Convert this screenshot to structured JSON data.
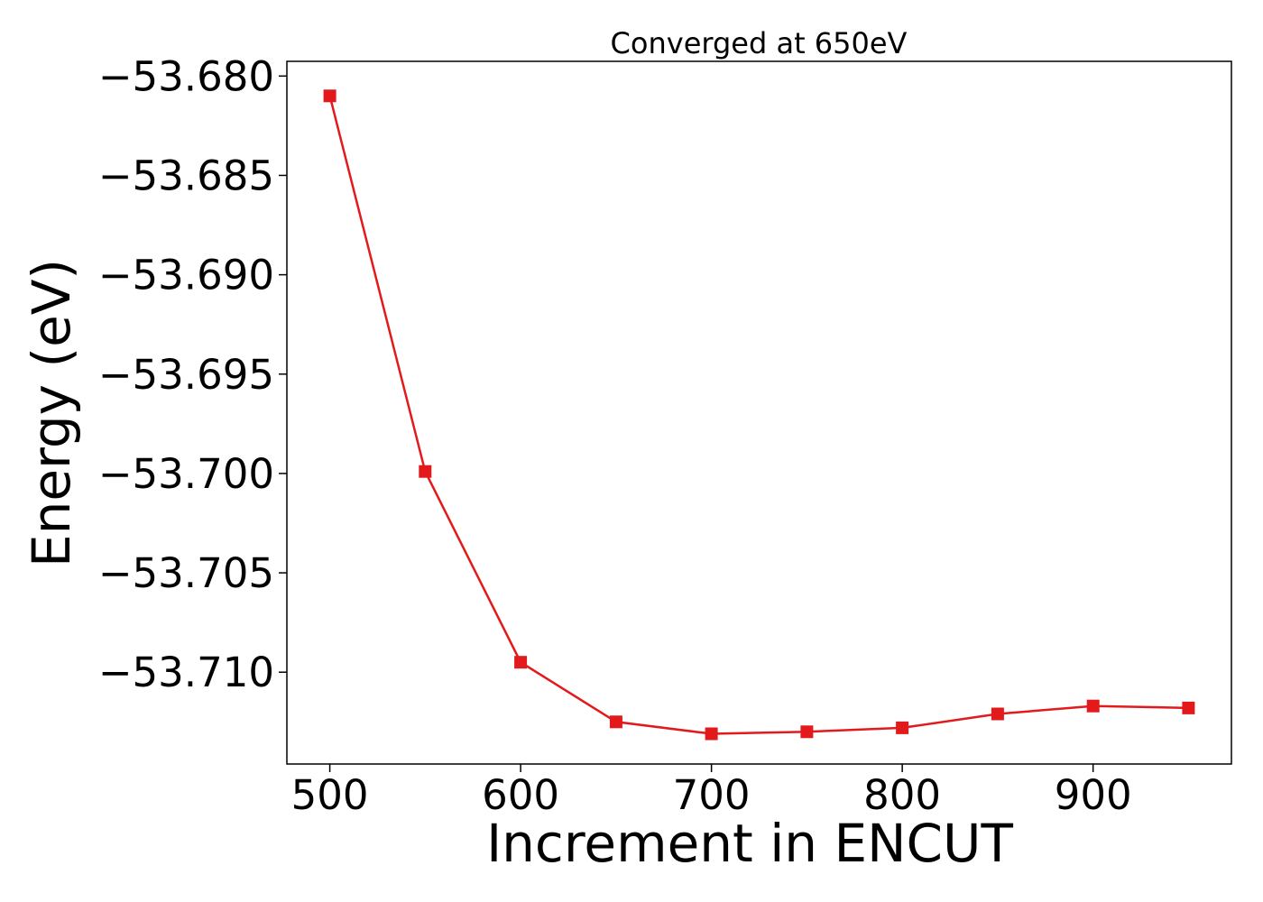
{
  "chart_data": {
    "type": "line",
    "title": "Converged at 650eV",
    "xlabel": "Increment in ENCUT",
    "ylabel": "Energy (eV)",
    "x": [
      500,
      550,
      600,
      650,
      700,
      750,
      800,
      850,
      900,
      950
    ],
    "series": [
      {
        "name": "",
        "values": [
          -53.681,
          -53.6999,
          -53.7095,
          -53.7125,
          -53.7131,
          -53.713,
          -53.7128,
          -53.7121,
          -53.7117,
          -53.7118
        ],
        "color": "#e31a1c",
        "marker": "square"
      }
    ],
    "xlim": [
      477.5,
      972.5
    ],
    "ylim": [
      -53.71462,
      -53.67926
    ],
    "xticks": [
      500,
      600,
      700,
      800,
      900
    ],
    "xtick_labels": [
      "500",
      "600",
      "700",
      "800",
      "900"
    ],
    "yticks": [
      -53.68,
      -53.685,
      -53.69,
      -53.695,
      -53.7,
      -53.705,
      -53.71
    ],
    "ytick_labels": [
      "−53.680",
      "−53.685",
      "−53.690",
      "−53.695",
      "−53.700",
      "−53.705",
      "−53.710"
    ],
    "grid": false,
    "legend": "none"
  }
}
